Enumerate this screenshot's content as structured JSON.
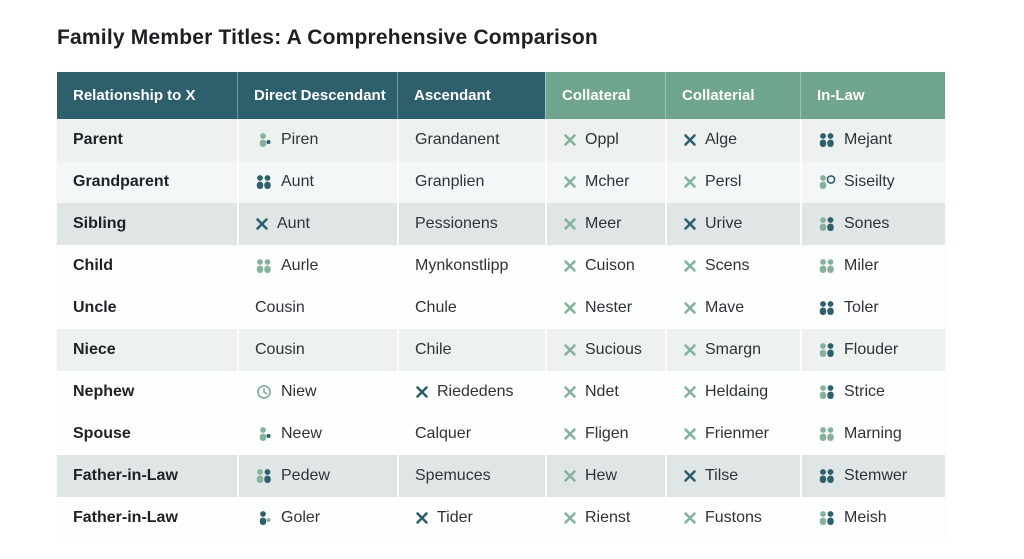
{
  "title": "Family Member Titles: A Comprehensive Comparison",
  "colors": {
    "header_dark": "#2e5f6d",
    "header_green": "#6fa48d",
    "icon_dark": "#2e5f6d",
    "icon_green": "#85b29d",
    "row_shades": {
      "white": "#fdfefe",
      "faint": "#f4f7f7",
      "light": "#edf1f0",
      "gray": "#e0e5e6"
    }
  },
  "table": {
    "columns": [
      {
        "label": "Relationship to X",
        "group": "dark"
      },
      {
        "label": "Direct Descendant",
        "group": "dark"
      },
      {
        "label": "Ascendant",
        "group": "dark"
      },
      {
        "label": "Collateral",
        "group": "green"
      },
      {
        "label": "Collaterial",
        "group": "green"
      },
      {
        "label": "In-Law",
        "group": "green"
      }
    ],
    "rows": [
      {
        "relationship": "Parent",
        "shade": "light",
        "cells": [
          {
            "icon": "person-green",
            "text": "Piren"
          },
          {
            "icon": null,
            "text": "Grandanent"
          },
          {
            "icon": "x-green",
            "text": "Oppl"
          },
          {
            "icon": "x-dark",
            "text": "Alge"
          },
          {
            "icon": "people-dark",
            "text": "Mejant"
          }
        ]
      },
      {
        "relationship": "Grandparent",
        "shade": "faint",
        "cells": [
          {
            "icon": "people-dark",
            "text": "Aunt"
          },
          {
            "icon": null,
            "text": "Granplien"
          },
          {
            "icon": "x-green",
            "text": "Mcher"
          },
          {
            "icon": "x-green",
            "text": "Persl"
          },
          {
            "icon": "person-badge",
            "text": "Siseilty"
          }
        ]
      },
      {
        "relationship": "Sibling",
        "shade": "gray",
        "cells": [
          {
            "icon": "x-dark",
            "text": "Aunt"
          },
          {
            "icon": null,
            "text": "Pessionens"
          },
          {
            "icon": "x-green",
            "text": "Meer"
          },
          {
            "icon": "x-dark",
            "text": "Urive"
          },
          {
            "icon": "people-mixed",
            "text": "Sones"
          }
        ]
      },
      {
        "relationship": "Child",
        "shade": "white",
        "cells": [
          {
            "icon": "people-green",
            "text": "Aurle"
          },
          {
            "icon": null,
            "text": "Mynkonstlipp"
          },
          {
            "icon": "x-green",
            "text": "Cuison"
          },
          {
            "icon": "x-green",
            "text": "Scens"
          },
          {
            "icon": "people-green",
            "text": "Miler"
          }
        ]
      },
      {
        "relationship": "Uncle",
        "shade": "white",
        "cells": [
          {
            "icon": null,
            "text": "Cousin"
          },
          {
            "icon": null,
            "text": "Chule"
          },
          {
            "icon": "x-green",
            "text": "Nester"
          },
          {
            "icon": "x-green",
            "text": "Mave"
          },
          {
            "icon": "people-dark",
            "text": "Toler"
          }
        ]
      },
      {
        "relationship": "Niece",
        "shade": "light",
        "cells": [
          {
            "icon": null,
            "text": "Cousin"
          },
          {
            "icon": null,
            "text": "Chile"
          },
          {
            "icon": "x-green",
            "text": "Sucious"
          },
          {
            "icon": "x-green",
            "text": "Smargn"
          },
          {
            "icon": "people-mixed",
            "text": "Flouder"
          }
        ]
      },
      {
        "relationship": "Nephew",
        "shade": "white",
        "cells": [
          {
            "icon": "clock",
            "text": "Niew"
          },
          {
            "icon": "x-dark",
            "text": "Riededens"
          },
          {
            "icon": "x-green",
            "text": "Ndet"
          },
          {
            "icon": "x-green",
            "text": "Heldaing"
          },
          {
            "icon": "people-mixed",
            "text": "Strice"
          }
        ]
      },
      {
        "relationship": "Spouse",
        "shade": "white",
        "cells": [
          {
            "icon": "person-green",
            "text": "Neew"
          },
          {
            "icon": null,
            "text": "Calquer"
          },
          {
            "icon": "x-green",
            "text": "Fligen"
          },
          {
            "icon": "x-green",
            "text": "Frienmer"
          },
          {
            "icon": "people-green",
            "text": "Marning"
          }
        ]
      },
      {
        "relationship": "Father-in-Law",
        "shade": "gray",
        "cells": [
          {
            "icon": "people-mixed",
            "text": "Pedew"
          },
          {
            "icon": null,
            "text": "Spemuces"
          },
          {
            "icon": "x-green",
            "text": "Hew"
          },
          {
            "icon": "x-dark",
            "text": "Tilse"
          },
          {
            "icon": "people-dark",
            "text": "Stemwer"
          }
        ]
      },
      {
        "relationship": "Father-in-Law",
        "shade": "white",
        "cells": [
          {
            "icon": "person-dark",
            "text": "Goler"
          },
          {
            "icon": "x-dark",
            "text": "Tider"
          },
          {
            "icon": "x-green",
            "text": "Rienst"
          },
          {
            "icon": "x-green",
            "text": "Fustons"
          },
          {
            "icon": "people-mixed",
            "text": "Meish"
          }
        ]
      }
    ]
  }
}
